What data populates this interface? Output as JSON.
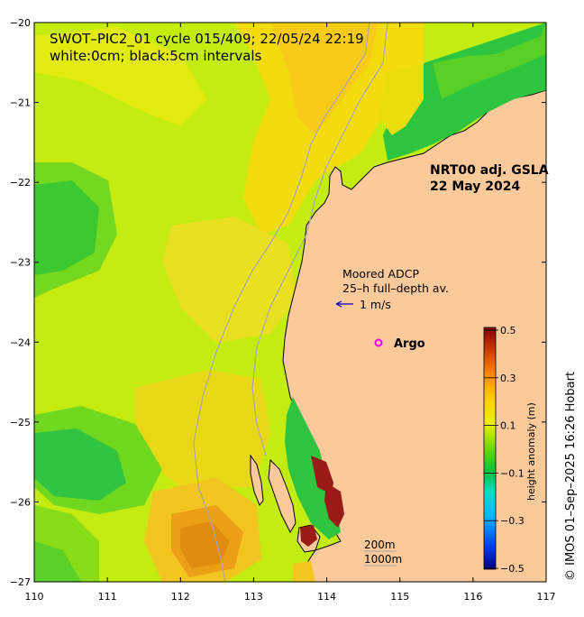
{
  "header": {
    "line1": "SWOT–PIC2_01 cycle 015/409; 22/05/24 22:19",
    "line2": "white:0cm; black:5cm intervals"
  },
  "product": {
    "line1": "NRT00 adj. GSLA",
    "line2": "22 May 2024"
  },
  "adcp": {
    "line1": "Moored ADCP",
    "line2": "25–h full–depth av.",
    "scale_label": "1 m/s"
  },
  "argo": {
    "label": "Argo",
    "color": "#ff00ff"
  },
  "isobaths": {
    "line1": "200m",
    "line2": "1000m"
  },
  "credit": "© IMOS 01–Sep–2025 16:26 Hobart",
  "axes": {
    "x_ticks": [
      "110",
      "111",
      "112",
      "113",
      "114",
      "115",
      "116",
      "117"
    ],
    "y_ticks": [
      "−20",
      "−21",
      "−22",
      "−23",
      "−24",
      "−25",
      "−26",
      "−27"
    ],
    "x_range": [
      110,
      117
    ],
    "y_range": [
      -27,
      -20
    ]
  },
  "colorbar": {
    "title": "height anomaly (m)",
    "ticks": [
      "0.5",
      "0.3",
      "0.1",
      "−0.1",
      "−0.3",
      "−0.5"
    ],
    "range": [
      -0.5,
      0.5
    ]
  },
  "colors": {
    "land": "#fcc99a",
    "isobath": "#a8a8a8"
  }
}
